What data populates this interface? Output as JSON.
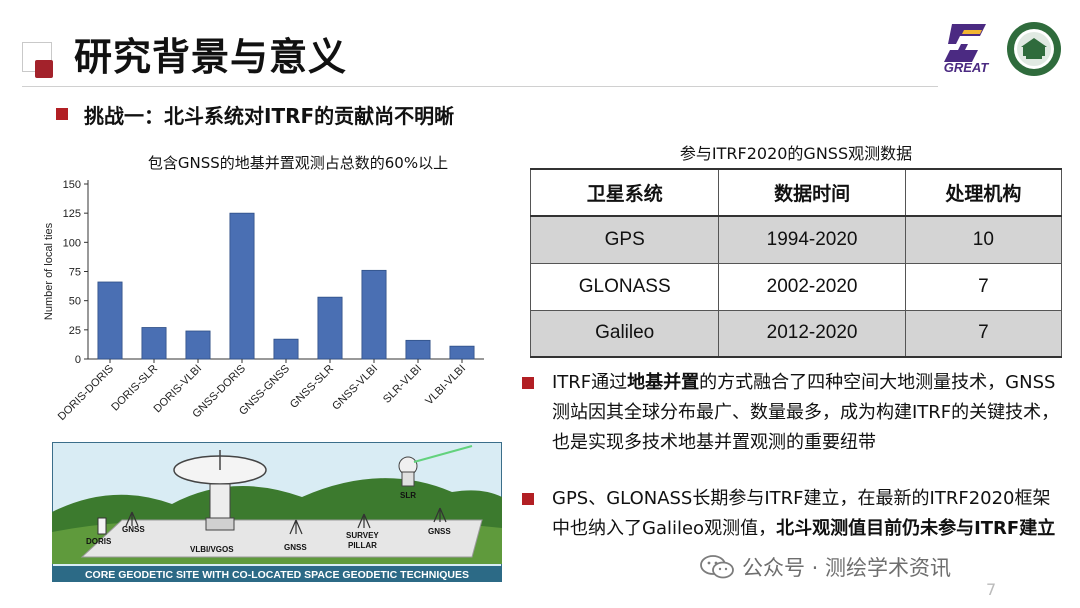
{
  "header": {
    "title": "研究背景与意义",
    "logo_text": "GREAT"
  },
  "challenge": "挑战一：北斗系统对ITRF的贡献尚不明晰",
  "chart_data": {
    "type": "bar",
    "title": "包含GNSS的地基并置观测占总数的60%以上",
    "ylabel": "Number of local ties",
    "xlabel": "",
    "categories": [
      "DORIS-DORIS",
      "DORIS-SLR",
      "DORIS-VLBI",
      "GNSS-DORIS",
      "GNSS-GNSS",
      "GNSS-SLR",
      "GNSS-VLBI",
      "SLR-VLBI",
      "VLBI-VLBI"
    ],
    "values": [
      66,
      27,
      24,
      125,
      17,
      53,
      76,
      16,
      11
    ],
    "ylim": [
      0,
      150
    ],
    "yticks": [
      0,
      25,
      50,
      75,
      100,
      125,
      150
    ],
    "bar_color": "#4a6fb3",
    "grid": false
  },
  "table": {
    "caption": "参与ITRF2020的GNSS观测数据",
    "headers": [
      "卫星系统",
      "数据时间",
      "处理机构"
    ],
    "rows": [
      [
        "GPS",
        "1994-2020",
        "10"
      ],
      [
        "GLONASS",
        "2002-2020",
        "7"
      ],
      [
        "Galileo",
        "2012-2020",
        "7"
      ]
    ]
  },
  "bullets": {
    "b1_pre": "ITRF通过",
    "b1_bold": "地基并置",
    "b1_post": "的方式融合了四种空间大地测量技术，GNSS测站因其全球分布最广、数量最多，成为构建ITRF的关键技术，也是实现多技术地基并置观测的重要纽带",
    "b2_pre": "GPS、GLONASS长期参与ITRF建立，在最新的ITRF2020框架中也纳入了Galileo观测值，",
    "b2_bold": "北斗观测值目前仍未参与ITRF建立"
  },
  "illustration": {
    "caption": "CORE GEODETIC SITE WITH CO-LOCATED SPACE GEODETIC TECHNIQUES",
    "labels": {
      "doris": "DORIS",
      "gnss": "GNSS",
      "vlbi": "VLBI/VGOS",
      "survey": "SURVEY",
      "pillar": "PILLAR",
      "slr": "SLR"
    }
  },
  "watermark": "公众号 · 测绘学术资讯",
  "page_number": "7"
}
